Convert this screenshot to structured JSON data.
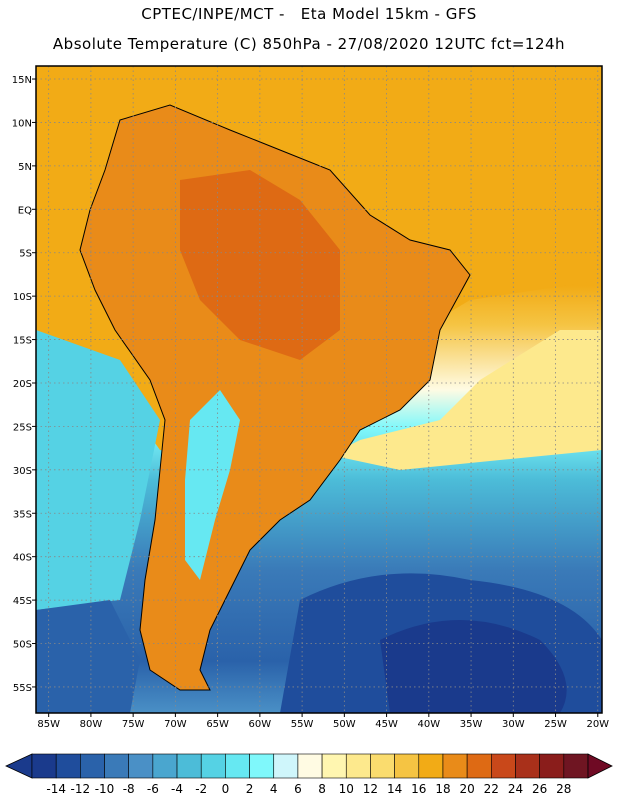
{
  "header": {
    "line1": "CPTEC/INPE/MCT -   Eta Model 15km - GFS",
    "line2": "Absolute Temperature (C) 850hPa - 27/08/2020 12UTC fct=124h"
  },
  "map": {
    "lat_labels": [
      "15N",
      "10N",
      "5N",
      "EQ",
      "5S",
      "10S",
      "15S",
      "20S",
      "25S",
      "30S",
      "35S",
      "40S",
      "45S",
      "50S",
      "55S"
    ],
    "lon_labels": [
      "85W",
      "80W",
      "75W",
      "70W",
      "65W",
      "60W",
      "55W",
      "50W",
      "45W",
      "40W",
      "35W",
      "30W",
      "25W",
      "20W"
    ],
    "lat_range": [
      -58,
      16.5
    ],
    "lon_range": [
      -86.5,
      -19.5
    ]
  },
  "colorbar": {
    "tick_labels": [
      "-14",
      "-12",
      "-10",
      "-8",
      "-6",
      "-4",
      "-2",
      "0",
      "2",
      "4",
      "6",
      "8",
      "10",
      "12",
      "14",
      "16",
      "18",
      "20",
      "22",
      "24",
      "26",
      "28"
    ],
    "colors": [
      "#1a3a8c",
      "#1f4d9c",
      "#2a62aa",
      "#3a7ab8",
      "#4a90c6",
      "#4aa6cf",
      "#4cbcd8",
      "#55d2e4",
      "#66e8f2",
      "#7ff8fb",
      "#cff6fb",
      "#fffbe3",
      "#fff6b0",
      "#fde98d",
      "#fadc6e",
      "#f5c443",
      "#f2ab16",
      "#e98b19",
      "#de6a14",
      "#c9481a",
      "#a9301a",
      "#8a1d1b",
      "#6f1522"
    ]
  }
}
